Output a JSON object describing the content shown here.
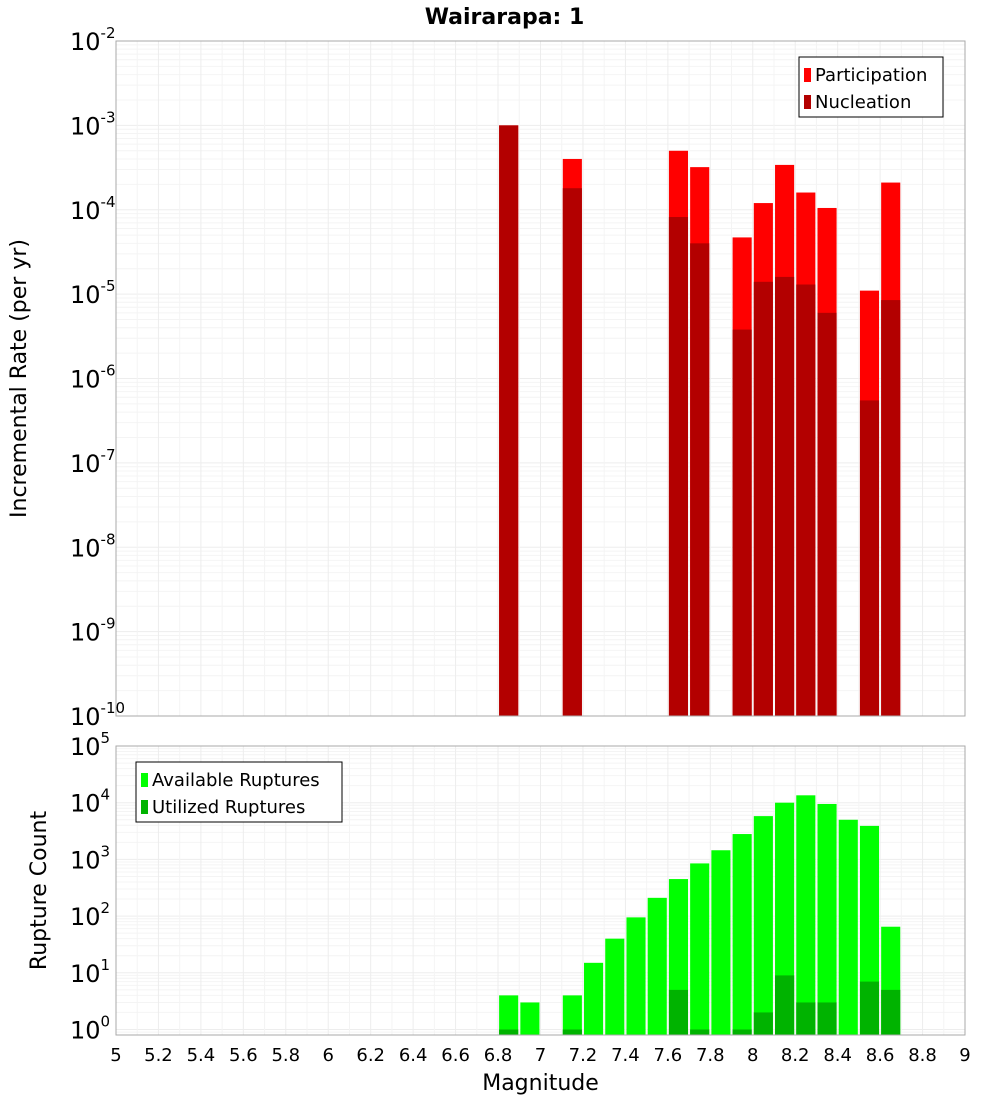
{
  "chart_data": [
    {
      "type": "bar",
      "title": "Wairarapa: 1",
      "xlabel": "",
      "ylabel": "Incremental Rate (per yr)",
      "yscale": "log",
      "xlim": [
        5,
        9
      ],
      "ylim": [
        1e-10,
        0.01
      ],
      "y_ticks": [
        {
          "base": "10",
          "exp": "-10"
        },
        {
          "base": "10",
          "exp": "-9"
        },
        {
          "base": "10",
          "exp": "-8"
        },
        {
          "base": "10",
          "exp": "-7"
        },
        {
          "base": "10",
          "exp": "-6"
        },
        {
          "base": "10",
          "exp": "-5"
        },
        {
          "base": "10",
          "exp": "-4"
        },
        {
          "base": "10",
          "exp": "-3"
        },
        {
          "base": "10",
          "exp": "-2"
        }
      ],
      "grid": true,
      "legend_position": "top-right",
      "bar_width": 0.09,
      "series": [
        {
          "name": "Participation",
          "color": "#ff0000",
          "x": [
            6.85,
            7.15,
            7.65,
            7.75,
            7.95,
            8.05,
            8.15,
            8.25,
            8.35,
            8.55,
            8.65
          ],
          "values": [
            0.001,
            0.0004,
            0.0005,
            0.00032,
            4.7e-05,
            0.00012,
            0.00034,
            0.00016,
            0.000105,
            1.1e-05,
            0.00021
          ]
        },
        {
          "name": "Nucleation",
          "color": "#b30000",
          "x": [
            6.85,
            7.15,
            7.65,
            7.75,
            7.95,
            8.05,
            8.15,
            8.25,
            8.35,
            8.55,
            8.65
          ],
          "values": [
            0.001,
            0.00018,
            8.2e-05,
            4e-05,
            3.8e-06,
            1.4e-05,
            1.6e-05,
            1.3e-05,
            6e-06,
            5.5e-07,
            8.5e-06
          ]
        }
      ]
    },
    {
      "type": "bar",
      "title": "",
      "xlabel": "Magnitude",
      "ylabel": "Rupture Count",
      "yscale": "log",
      "xlim": [
        5,
        9
      ],
      "ylim": [
        0.8,
        100000
      ],
      "x_ticks": [
        "5",
        "5.2",
        "5.4",
        "5.6",
        "5.8",
        "6",
        "6.2",
        "6.4",
        "6.6",
        "6.8",
        "7",
        "7.2",
        "7.4",
        "7.6",
        "7.8",
        "8",
        "8.2",
        "8.4",
        "8.6",
        "8.8",
        "9"
      ],
      "y_ticks": [
        {
          "base": "10",
          "exp": "0"
        },
        {
          "base": "10",
          "exp": "1"
        },
        {
          "base": "10",
          "exp": "2"
        },
        {
          "base": "10",
          "exp": "3"
        },
        {
          "base": "10",
          "exp": "4"
        },
        {
          "base": "10",
          "exp": "5"
        }
      ],
      "grid": true,
      "legend_position": "top-left",
      "bar_width": 0.09,
      "series": [
        {
          "name": "Available Ruptures",
          "color": "#00ff00",
          "x": [
            6.85,
            6.95,
            7.15,
            7.25,
            7.35,
            7.45,
            7.55,
            7.65,
            7.75,
            7.85,
            7.95,
            8.05,
            8.15,
            8.25,
            8.35,
            8.45,
            8.55,
            8.65
          ],
          "values": [
            4,
            3,
            4,
            15,
            40,
            95,
            210,
            450,
            850,
            1450,
            2800,
            5800,
            10000,
            13500,
            9500,
            5000,
            3900,
            65
          ]
        },
        {
          "name": "Utilized Ruptures",
          "color": "#00b300",
          "x": [
            6.85,
            7.15,
            7.65,
            7.75,
            7.95,
            8.05,
            8.15,
            8.25,
            8.35,
            8.55,
            8.65
          ],
          "values": [
            1,
            1,
            5,
            1,
            1,
            2,
            9,
            3,
            3,
            7,
            5
          ]
        }
      ]
    }
  ]
}
